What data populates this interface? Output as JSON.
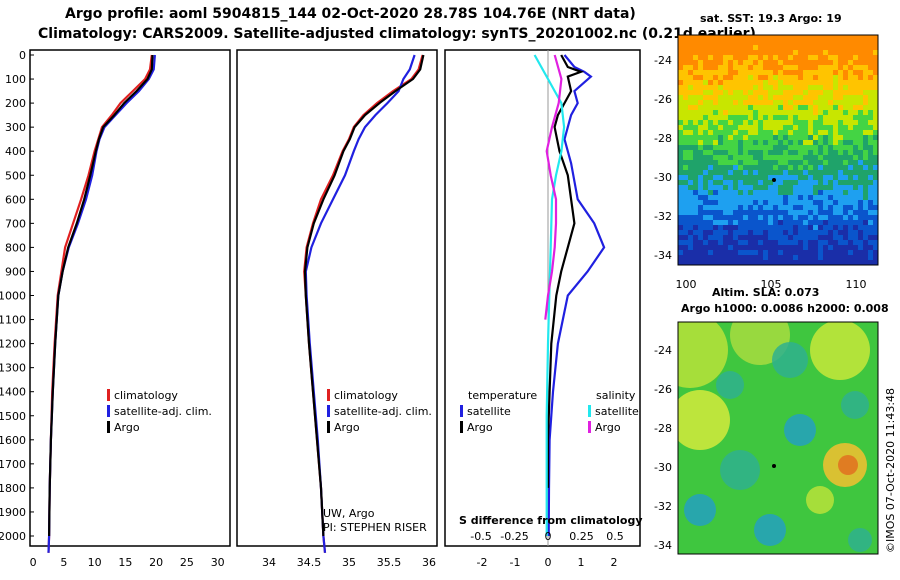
{
  "header": {
    "title1": "Argo profile: aoml 5904815_144 02-Oct-2020 28.78S 104.76E (NRT data)",
    "title2": "Climatology: CARS2009. Satellite-adjusted climatology: synTS_20201002.nc (0.21d earlier)"
  },
  "colors": {
    "climatology": "#e02020",
    "satellite": "#2020e0",
    "argo": "#000000",
    "temp_sat": "#22e8ee",
    "sal_sat": "#e020e0"
  },
  "depth_ticks": [
    "0",
    "100",
    "200",
    "300",
    "400",
    "500",
    "600",
    "700",
    "800",
    "900",
    "1000",
    "1100",
    "1200",
    "1300",
    "1400",
    "1500",
    "1600",
    "1700",
    "1800",
    "1900",
    "2000"
  ],
  "chart_data": [
    {
      "type": "line",
      "name": "temperature_profile",
      "xlabel": "",
      "ylabel": "depth",
      "xlim": [
        -0.5,
        32
      ],
      "ylim": [
        2070,
        -20
      ],
      "x_ticks": [
        "0",
        "5",
        "10",
        "15",
        "20",
        "25",
        "30"
      ],
      "legend": [
        "climatology",
        "satellite-adj. clim.",
        "Argo"
      ],
      "series": [
        {
          "name": "climatology",
          "x": [
            19.3,
            19.0,
            18.2,
            16.2,
            14.2,
            12.8,
            11.2,
            10.6,
            10.0,
            9.0,
            7.8,
            6.5,
            5.2,
            4.6,
            4.0,
            3.5,
            3.1,
            2.9,
            2.7,
            2.6,
            2.5
          ],
          "y": [
            0,
            60,
            100,
            150,
            200,
            250,
            300,
            350,
            400,
            500,
            600,
            700,
            800,
            900,
            1000,
            1200,
            1400,
            1600,
            1800,
            2000,
            2070
          ]
        },
        {
          "name": "satellite",
          "x": [
            19.8,
            19.6,
            18.8,
            17.2,
            15.2,
            13.4,
            11.6,
            10.8,
            10.3,
            9.6,
            8.6,
            7.3,
            5.8,
            4.8,
            4.1,
            3.6,
            3.2,
            2.9,
            2.7,
            2.6,
            2.5
          ],
          "y": [
            0,
            60,
            100,
            150,
            200,
            250,
            300,
            350,
            400,
            500,
            600,
            700,
            800,
            900,
            1000,
            1200,
            1400,
            1600,
            1800,
            2000,
            2070
          ]
        },
        {
          "name": "argo",
          "x": [
            19.4,
            19.3,
            18.6,
            16.8,
            14.8,
            13.2,
            11.4,
            10.7,
            10.2,
            9.3,
            8.3,
            7.1,
            5.7,
            4.8,
            4.1,
            3.6,
            3.2,
            2.9,
            2.7,
            2.6
          ],
          "y": [
            0,
            60,
            100,
            150,
            200,
            250,
            300,
            350,
            400,
            500,
            600,
            700,
            800,
            900,
            1000,
            1200,
            1400,
            1600,
            1800,
            2000
          ]
        }
      ]
    },
    {
      "type": "line",
      "name": "salinity_profile",
      "xlabel": "",
      "ylabel": "depth",
      "xlim": [
        33.6,
        36.1
      ],
      "ylim": [
        2070,
        -20
      ],
      "x_ticks": [
        "34",
        "34.5",
        "35",
        "35.5",
        "36"
      ],
      "legend": [
        "climatology",
        "satellite-adj. clim.",
        "Argo"
      ],
      "annotations": [
        "UW, Argo",
        "PI: STEPHEN RISER"
      ],
      "series": [
        {
          "name": "climatology",
          "x": [
            35.92,
            35.87,
            35.78,
            35.55,
            35.35,
            35.18,
            35.06,
            35.0,
            34.92,
            34.8,
            34.65,
            34.55,
            34.47,
            34.44,
            34.46,
            34.5,
            34.55,
            34.6,
            34.65,
            34.68,
            34.7
          ],
          "y": [
            0,
            60,
            100,
            150,
            200,
            250,
            300,
            350,
            400,
            500,
            600,
            700,
            800,
            900,
            1000,
            1200,
            1400,
            1600,
            1800,
            2000,
            2070
          ]
        },
        {
          "name": "satellite",
          "x": [
            35.82,
            35.76,
            35.68,
            35.62,
            35.48,
            35.33,
            35.2,
            35.12,
            35.06,
            34.95,
            34.8,
            34.65,
            34.53,
            34.46,
            34.47,
            34.51,
            34.56,
            34.61,
            34.65,
            34.68,
            34.7
          ],
          "y": [
            0,
            60,
            100,
            150,
            200,
            250,
            300,
            350,
            400,
            500,
            600,
            700,
            800,
            900,
            1000,
            1200,
            1400,
            1600,
            1800,
            2000,
            2070
          ]
        },
        {
          "name": "argo",
          "x": [
            35.93,
            35.89,
            35.8,
            35.58,
            35.38,
            35.2,
            35.07,
            35.01,
            34.93,
            34.82,
            34.68,
            34.56,
            34.48,
            34.45,
            34.46,
            34.5,
            34.55,
            34.6,
            34.65,
            34.68
          ],
          "y": [
            0,
            60,
            100,
            150,
            200,
            250,
            300,
            350,
            400,
            500,
            600,
            700,
            800,
            900,
            1000,
            1200,
            1400,
            1600,
            1800,
            2000
          ]
        }
      ]
    },
    {
      "type": "line",
      "name": "difference_from_climatology",
      "xlabel": "S difference from climatology",
      "ylim": [
        2070,
        -20
      ],
      "x_ticks_top": [
        "-0.5",
        "-0.25",
        "0",
        "0.25",
        "0.5"
      ],
      "x_ticks_bottom": [
        "-2",
        "-1",
        "0",
        "1",
        "2"
      ],
      "xlim_temperature": [
        -3.0,
        2.8
      ],
      "legend": [
        "temperature",
        "satellite",
        "Argo",
        "salinity",
        "satellite",
        "Argo"
      ],
      "series": [
        {
          "name": "temperature satellite",
          "x": [
            0.5,
            0.8,
            1.1,
            1.3,
            0.8,
            0.9,
            0.7,
            0.6,
            0.5,
            0.7,
            0.9,
            1.4,
            1.7,
            1.2,
            0.6,
            0.3,
            0.15,
            0.05,
            0.03,
            0.02
          ],
          "y": [
            0,
            50,
            70,
            90,
            150,
            200,
            250,
            300,
            350,
            450,
            600,
            700,
            800,
            900,
            1000,
            1200,
            1400,
            1600,
            1800,
            2000
          ]
        },
        {
          "name": "temperature argo",
          "x": [
            0.4,
            0.6,
            1.0,
            0.6,
            0.7,
            0.5,
            0.3,
            0.2,
            0.35,
            0.6,
            0.7,
            0.8,
            0.6,
            0.4,
            0.25,
            0.1,
            0.05,
            0.0,
            0.0
          ],
          "y": [
            0,
            50,
            70,
            90,
            150,
            200,
            250,
            300,
            400,
            500,
            600,
            700,
            800,
            900,
            1000,
            1200,
            1400,
            1600,
            1800
          ]
        },
        {
          "name": "salinity satellite",
          "x": [
            -0.1,
            -0.05,
            0.0,
            0.05,
            0.1,
            0.12,
            0.1,
            0.06,
            0.03,
            0.02,
            0.01,
            0.0,
            -0.01,
            -0.01
          ],
          "y": [
            0,
            50,
            100,
            150,
            200,
            300,
            400,
            500,
            600,
            800,
            1000,
            1200,
            1500,
            2000
          ]
        },
        {
          "name": "salinity argo",
          "x": [
            0.05,
            0.1,
            0.08,
            0.03,
            -0.01,
            0.02,
            0.06,
            0.06,
            0.05,
            0.03,
            0.0,
            -0.02
          ],
          "y": [
            0,
            100,
            200,
            300,
            400,
            500,
            600,
            700,
            800,
            900,
            1000,
            1100
          ]
        }
      ]
    }
  ],
  "sst_map": {
    "title": "sat. SST: 19.3 Argo: 19",
    "lat_ticks": [
      "-24",
      "-26",
      "-28",
      "-30",
      "-32",
      "-34"
    ],
    "lon_ticks": [
      "100",
      "105",
      "110"
    ],
    "bands": [
      "#ff8a00",
      "#ffc400",
      "#c8e600",
      "#44d444",
      "#1fa36a",
      "#1ea0f0",
      "#0a55cc",
      "#1a2ea8"
    ]
  },
  "sla_map": {
    "title1": "Altim. SLA: 0.073",
    "title2": "Argo h1000: 0.0086 h2000: 0.008",
    "lat_ticks": [
      "-24",
      "-26",
      "-28",
      "-30",
      "-32",
      "-34"
    ]
  },
  "credit": "©IMOS 07-Oct-2020 11:43:48"
}
